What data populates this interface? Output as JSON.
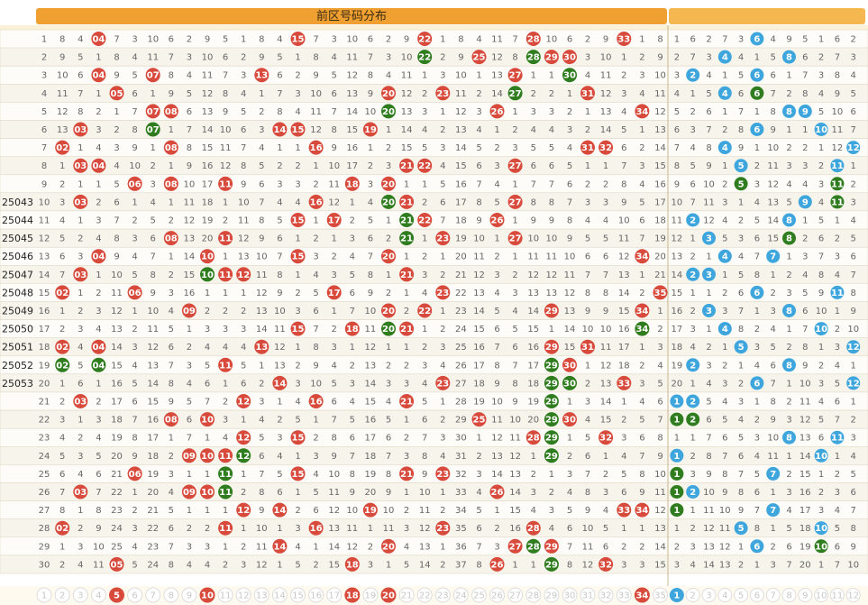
{
  "header": {
    "front_title": "前区号码分布",
    "front_columns": [
      "01",
      "02",
      "03",
      "04",
      "05",
      "06",
      "07",
      "08",
      "09",
      "10",
      "11",
      "12",
      "13",
      "14",
      "15",
      "16",
      "17",
      "18",
      "19",
      "20",
      "21",
      "22",
      "23",
      "24",
      "25",
      "26",
      "27",
      "28",
      "29",
      "30",
      "31",
      "32",
      "33",
      "34",
      "35"
    ],
    "back_columns": [
      "01",
      "02",
      "03",
      "04",
      "05",
      "06",
      "07",
      "08",
      "09",
      "10",
      "11",
      "12"
    ]
  },
  "periods": [
    "",
    "",
    "",
    "",
    "",
    "",
    "",
    "",
    "",
    "25043",
    "25044",
    "25045",
    "25046",
    "25047",
    "25048",
    "25049",
    "25050",
    "25051",
    "25052",
    "25053",
    "",
    "",
    "",
    "",
    "",
    "",
    "",
    "",
    "",
    ""
  ],
  "draws": [
    {
      "front": [
        4,
        15,
        22,
        28,
        33
      ],
      "back": [
        6
      ]
    },
    {
      "front": [
        22,
        25,
        28,
        29,
        30
      ],
      "back": [
        4,
        8
      ]
    },
    {
      "front": [
        4,
        7,
        13,
        27,
        30
      ],
      "back": [
        2,
        6
      ]
    },
    {
      "front": [
        5,
        20,
        23,
        27,
        31
      ],
      "back": [
        4,
        6
      ]
    },
    {
      "front": [
        7,
        8,
        20,
        26,
        34
      ],
      "back": [
        8,
        9
      ]
    },
    {
      "front": [
        3,
        7,
        14,
        15,
        19
      ],
      "back": [
        6,
        10
      ]
    },
    {
      "front": [
        2,
        8,
        16,
        31,
        32
      ],
      "back": [
        4,
        12
      ]
    },
    {
      "front": [
        3,
        4,
        21,
        22,
        27
      ],
      "back": [
        5,
        11
      ]
    },
    {
      "front": [
        6,
        8,
        11,
        18,
        20
      ],
      "back": [
        5,
        11
      ]
    },
    {
      "front": [
        3,
        16,
        20,
        21,
        27
      ],
      "back": [
        9,
        11
      ]
    },
    {
      "front": [
        15,
        17,
        21,
        22,
        26
      ],
      "back": [
        2,
        8
      ]
    },
    {
      "front": [
        8,
        11,
        21,
        23,
        27
      ],
      "back": [
        3,
        8
      ]
    },
    {
      "front": [
        4,
        10,
        15,
        20,
        34
      ],
      "back": [
        4,
        7
      ]
    },
    {
      "front": [
        3,
        10,
        11,
        12,
        21
      ],
      "back": [
        2,
        3
      ]
    },
    {
      "front": [
        2,
        6,
        17,
        23,
        35
      ],
      "back": [
        6,
        11
      ]
    },
    {
      "front": [
        9,
        20,
        22,
        29,
        34
      ],
      "back": [
        3,
        8
      ]
    },
    {
      "front": [
        15,
        18,
        20,
        21,
        34
      ],
      "back": [
        4,
        10
      ]
    },
    {
      "front": [
        2,
        4,
        13,
        29,
        31
      ],
      "back": [
        5,
        12
      ]
    },
    {
      "front": [
        2,
        4,
        11,
        29,
        30
      ],
      "back": [
        2,
        8
      ]
    },
    {
      "front": [
        14,
        23,
        29,
        30,
        33
      ],
      "back": [
        6,
        12
      ]
    },
    {
      "front": [
        3,
        12,
        16,
        21,
        29
      ],
      "back": [
        1,
        2
      ]
    },
    {
      "front": [
        8,
        10,
        25,
        29,
        30
      ],
      "back": [
        1,
        2
      ]
    },
    {
      "front": [
        12,
        15,
        28,
        29,
        32
      ],
      "back": [
        8,
        11
      ]
    },
    {
      "front": [
        9,
        10,
        11,
        12,
        29
      ],
      "back": [
        1,
        10
      ]
    },
    {
      "front": [
        6,
        11,
        15,
        21,
        23
      ],
      "back": [
        1,
        7
      ]
    },
    {
      "front": [
        3,
        9,
        10,
        11,
        26
      ],
      "back": [
        1,
        2
      ]
    },
    {
      "front": [
        12,
        14,
        19,
        33,
        34
      ],
      "back": [
        1,
        7
      ]
    },
    {
      "front": [
        2,
        11,
        16,
        23,
        28
      ],
      "back": [
        5,
        10
      ]
    },
    {
      "front": [
        14,
        20,
        27,
        28,
        29
      ],
      "back": [
        6,
        10
      ]
    },
    {
      "front": [
        5,
        18,
        26,
        29,
        32
      ],
      "back": []
    }
  ],
  "selector": {
    "front_selected": [
      5,
      10,
      18,
      20,
      34
    ],
    "back_selected": [
      1
    ]
  },
  "colors": {
    "front_ball": "#d84a3c",
    "back_ball": "#3ea6dc",
    "repeat_ball": "#2f7d1f",
    "header": "#f0a030",
    "grid": "#e0d6c0"
  }
}
